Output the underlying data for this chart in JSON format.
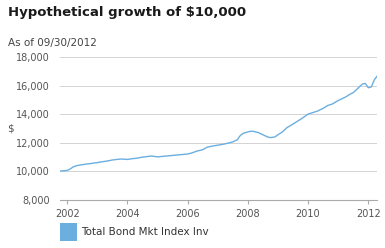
{
  "title": "Hypothetical growth of $10,000",
  "subtitle": "As of 09/30/2012",
  "ylabel": "$",
  "legend_label": "Total Bond Mkt Index Inv",
  "legend_color": "#6aafe0",
  "line_color": "#6aafe0",
  "background_color": "#ffffff",
  "grid_color": "#cccccc",
  "title_color": "#1a1a1a",
  "subtitle_color": "#444444",
  "ylim": [
    8000,
    18000
  ],
  "yticks": [
    8000,
    10000,
    12000,
    14000,
    16000,
    18000
  ],
  "xlim": [
    2001.75,
    2012.3
  ],
  "xticks": [
    2002,
    2004,
    2006,
    2008,
    2010,
    2012
  ],
  "x": [
    2001.75,
    2002.0,
    2002.1,
    2002.2,
    2002.35,
    2002.5,
    2002.65,
    2002.75,
    2002.9,
    2003.0,
    2003.15,
    2003.3,
    2003.5,
    2003.65,
    2003.8,
    2004.0,
    2004.15,
    2004.3,
    2004.5,
    2004.65,
    2004.8,
    2005.0,
    2005.15,
    2005.3,
    2005.5,
    2005.65,
    2005.8,
    2006.0,
    2006.15,
    2006.3,
    2006.5,
    2006.65,
    2006.8,
    2007.0,
    2007.15,
    2007.3,
    2007.5,
    2007.65,
    2007.75,
    2007.85,
    2008.0,
    2008.1,
    2008.2,
    2008.35,
    2008.5,
    2008.65,
    2008.75,
    2008.9,
    2009.0,
    2009.15,
    2009.3,
    2009.5,
    2009.65,
    2009.8,
    2010.0,
    2010.15,
    2010.3,
    2010.5,
    2010.65,
    2010.8,
    2011.0,
    2011.1,
    2011.25,
    2011.4,
    2011.5,
    2011.65,
    2011.8,
    2011.9,
    2012.0,
    2012.1,
    2012.2,
    2012.3
  ],
  "y": [
    10000,
    10050,
    10150,
    10300,
    10400,
    10450,
    10500,
    10520,
    10570,
    10600,
    10650,
    10700,
    10780,
    10820,
    10850,
    10820,
    10870,
    10900,
    10980,
    11020,
    11060,
    11000,
    11030,
    11060,
    11100,
    11130,
    11160,
    11200,
    11280,
    11400,
    11500,
    11680,
    11750,
    11820,
    11870,
    11940,
    12050,
    12200,
    12500,
    12650,
    12750,
    12800,
    12780,
    12700,
    12550,
    12400,
    12350,
    12400,
    12550,
    12750,
    13050,
    13300,
    13500,
    13700,
    14000,
    14100,
    14200,
    14400,
    14600,
    14700,
    14950,
    15050,
    15200,
    15400,
    15500,
    15800,
    16100,
    16150,
    15850,
    15900,
    16400,
    16680
  ]
}
